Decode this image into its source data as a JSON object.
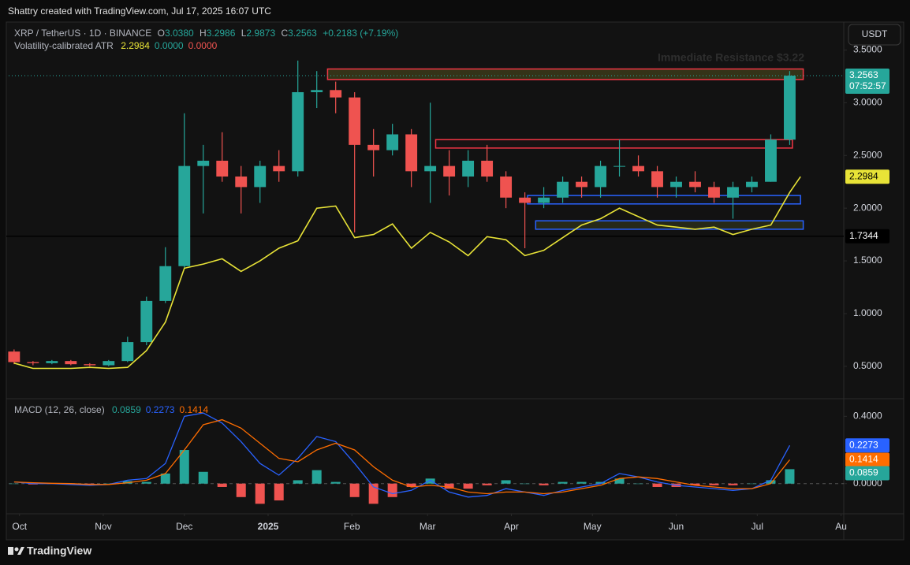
{
  "header": {
    "credit": "Shattry created with TradingView.com, Jul 17, 2025 16:07 UTC",
    "symbol": "XRP / TetherUS · 1D · BINANCE",
    "ohlc": [
      {
        "key": "O",
        "value": "3.0380"
      },
      {
        "key": "H",
        "value": "3.2986"
      },
      {
        "key": "L",
        "value": "2.9873"
      },
      {
        "key": "C",
        "value": "3.2563"
      }
    ],
    "change": "+0.2183 (+7.19%)",
    "brand": "TradingView"
  },
  "chart_data": [
    {
      "type": "candlestick",
      "x": [
        -2,
        5,
        12,
        19,
        26,
        33,
        40,
        47,
        54,
        61,
        68,
        75,
        82,
        89,
        96,
        103,
        110,
        117,
        124,
        131,
        138,
        145,
        152,
        159,
        166,
        173,
        180,
        187,
        194,
        201,
        208,
        215,
        222,
        229,
        236,
        243,
        250,
        257,
        264,
        271,
        278,
        285
      ],
      "open": [
        0.64,
        0.54,
        0.53,
        0.55,
        0.52,
        0.51,
        0.55,
        0.73,
        1.12,
        1.45,
        2.4,
        2.45,
        2.3,
        2.2,
        2.4,
        2.35,
        3.1,
        3.12,
        3.05,
        2.6,
        2.55,
        2.7,
        2.35,
        2.4,
        2.3,
        2.45,
        2.3,
        2.1,
        2.05,
        2.1,
        2.25,
        2.2,
        2.4,
        2.4,
        2.35,
        2.2,
        2.25,
        2.2,
        2.1,
        2.2,
        2.25,
        2.65
      ],
      "high": [
        0.66,
        0.55,
        0.56,
        0.56,
        0.53,
        0.56,
        0.78,
        1.16,
        1.63,
        2.9,
        2.6,
        2.72,
        2.4,
        2.45,
        2.55,
        3.4,
        3.3,
        3.2,
        3.1,
        2.75,
        2.8,
        2.75,
        3.0,
        2.55,
        2.55,
        2.6,
        2.35,
        2.15,
        2.2,
        2.3,
        2.3,
        2.45,
        2.65,
        2.5,
        2.4,
        2.3,
        2.35,
        2.25,
        2.25,
        2.3,
        2.7,
        3.3
      ],
      "low": [
        0.52,
        0.51,
        0.52,
        0.51,
        0.5,
        0.5,
        0.54,
        0.7,
        1.1,
        1.43,
        1.95,
        2.25,
        1.95,
        2.05,
        2.25,
        2.3,
        2.95,
        2.9,
        1.77,
        2.3,
        2.5,
        2.2,
        2.05,
        2.12,
        2.2,
        2.25,
        2.0,
        1.62,
        2.0,
        2.05,
        2.1,
        2.1,
        2.3,
        2.3,
        2.1,
        2.1,
        2.15,
        2.05,
        1.9,
        2.15,
        2.25,
        2.6
      ],
      "close": [
        0.54,
        0.53,
        0.55,
        0.52,
        0.51,
        0.55,
        0.73,
        1.12,
        1.45,
        2.4,
        2.45,
        2.3,
        2.2,
        2.4,
        2.35,
        3.1,
        3.12,
        3.05,
        2.6,
        2.55,
        2.7,
        2.35,
        2.4,
        2.3,
        2.45,
        2.3,
        2.1,
        2.05,
        2.1,
        2.25,
        2.2,
        2.4,
        2.4,
        2.35,
        2.2,
        2.25,
        2.2,
        2.1,
        2.2,
        2.25,
        2.65,
        3.2563
      ],
      "up_color": "#26a69a",
      "down_color": "#ef5350",
      "xlim": [
        -4,
        305
      ],
      "xticks": [
        {
          "value": 0,
          "label": "Oct"
        },
        {
          "value": 31,
          "label": "Nov"
        },
        {
          "value": 61,
          "label": "Dec"
        },
        {
          "value": 92,
          "label": "2025"
        },
        {
          "value": 123,
          "label": "Feb"
        },
        {
          "value": 151,
          "label": "Mar"
        },
        {
          "value": 182,
          "label": "Apr"
        },
        {
          "value": 212,
          "label": "May"
        },
        {
          "value": 243,
          "label": "Jun"
        },
        {
          "value": 273,
          "label": "Jul"
        },
        {
          "value": 304,
          "label": "Au"
        }
      ],
      "ylim": [
        0.2,
        3.75
      ],
      "yticks": [
        {
          "value": 3.5,
          "label": "3.5000"
        },
        {
          "value": 3,
          "label": "3.0000"
        },
        {
          "value": 2.5,
          "label": "2.5000"
        },
        {
          "value": 2,
          "label": "2.0000"
        },
        {
          "value": 1.5,
          "label": "1.5000"
        },
        {
          "value": 1,
          "label": "1.0000"
        },
        {
          "value": 0.5,
          "label": "0.5000"
        }
      ],
      "atr": {
        "name": "Volatility-calibrated ATR",
        "color": "#e8e337",
        "x": [
          -2,
          5,
          12,
          19,
          26,
          33,
          40,
          47,
          54,
          61,
          68,
          75,
          82,
          89,
          96,
          103,
          110,
          117,
          124,
          131,
          138,
          145,
          152,
          159,
          166,
          173,
          180,
          187,
          194,
          201,
          208,
          215,
          222,
          229,
          236,
          243,
          250,
          257,
          264,
          271,
          278,
          285,
          289
        ],
        "values": [
          0.53,
          0.48,
          0.48,
          0.48,
          0.49,
          0.48,
          0.49,
          0.65,
          0.92,
          1.43,
          1.47,
          1.52,
          1.4,
          1.5,
          1.62,
          1.69,
          2.0,
          2.02,
          1.72,
          1.75,
          1.85,
          1.62,
          1.77,
          1.68,
          1.55,
          1.73,
          1.7,
          1.55,
          1.6,
          1.72,
          1.84,
          1.9,
          2.0,
          1.92,
          1.84,
          1.82,
          1.8,
          1.82,
          1.75,
          1.8,
          1.84,
          2.15,
          2.2984
        ],
        "extra_values": [
          {
            "value": 0,
            "label": "0.0000",
            "color": "#26a69a"
          },
          {
            "value": 0,
            "label": "0.0000",
            "color": "#ef5350"
          }
        ]
      },
      "hline": {
        "value": 1.7344,
        "color": "#000000"
      },
      "zones": [
        {
          "x": [
            114,
            290
          ],
          "y": [
            3.22,
            3.32
          ],
          "color": "#f23645",
          "fill": "#3b3a1a"
        },
        {
          "x": [
            154,
            286
          ],
          "y": [
            2.57,
            2.65
          ],
          "color": "#f23645",
          "fill": "#1a1414"
        },
        {
          "x": [
            188,
            289
          ],
          "y": [
            2.04,
            2.12
          ],
          "color": "#2962ff",
          "fill": "#14161c"
        },
        {
          "x": [
            191,
            290
          ],
          "y": [
            1.8,
            1.88
          ],
          "color": "#2962ff",
          "fill": "#2a2e1a"
        }
      ],
      "annotation": "Immediate Resistance $3.22",
      "countdown": "07:52:57",
      "currency": "USDT"
    },
    {
      "type": "macd",
      "title": "MACD (12, 26, close)",
      "x": [
        -2,
        5,
        12,
        19,
        26,
        33,
        40,
        47,
        54,
        61,
        68,
        75,
        82,
        89,
        96,
        103,
        110,
        117,
        124,
        131,
        138,
        145,
        152,
        159,
        166,
        173,
        180,
        187,
        194,
        201,
        208,
        215,
        222,
        229,
        236,
        243,
        250,
        257,
        264,
        271,
        278,
        285
      ],
      "histogram": {
        "values": [
          0,
          -0.005,
          -0.002,
          -0.005,
          -0.005,
          0,
          0.015,
          0.01,
          0.06,
          0.2,
          0.07,
          -0.02,
          -0.08,
          -0.12,
          -0.1,
          0.02,
          0.08,
          0.01,
          -0.08,
          -0.12,
          -0.08,
          -0.02,
          0.03,
          -0.03,
          -0.03,
          -0.01,
          0.02,
          0,
          -0.01,
          0.01,
          0.01,
          0.01,
          0.03,
          0,
          -0.02,
          -0.02,
          -0.01,
          -0.01,
          -0.01,
          0,
          0.02,
          0.0859
        ],
        "positive_color": "#26a69a",
        "negative_color": "#ef5350"
      },
      "series": [
        {
          "color": "#2962ff",
          "values": [
            0.01,
            0,
            0,
            -0.005,
            -0.01,
            -0.005,
            0.02,
            0.03,
            0.12,
            0.4,
            0.42,
            0.36,
            0.25,
            0.12,
            0.05,
            0.15,
            0.28,
            0.25,
            0.12,
            -0.02,
            -0.06,
            -0.04,
            0.02,
            -0.05,
            -0.08,
            -0.07,
            -0.03,
            -0.05,
            -0.07,
            -0.04,
            -0.02,
            0,
            0.06,
            0.04,
            0.01,
            -0.01,
            -0.02,
            -0.03,
            -0.04,
            -0.03,
            0.02,
            0.2273
          ]
        },
        {
          "color": "#ff6d00",
          "values": [
            0.01,
            0.005,
            0.002,
            0,
            -0.005,
            -0.005,
            0.005,
            0.02,
            0.06,
            0.2,
            0.35,
            0.38,
            0.33,
            0.24,
            0.15,
            0.13,
            0.2,
            0.24,
            0.2,
            0.1,
            0.02,
            -0.02,
            -0.01,
            -0.02,
            -0.05,
            -0.06,
            -0.05,
            -0.05,
            -0.06,
            -0.05,
            -0.03,
            -0.01,
            0.03,
            0.04,
            0.03,
            0.01,
            -0.01,
            -0.02,
            -0.03,
            -0.03,
            0,
            0.1414
          ]
        }
      ],
      "ylim": [
        -0.17,
        0.5
      ],
      "yticks": [
        {
          "value": 0,
          "label": "0.0000"
        },
        {
          "value": 0.4,
          "label": "0.4000"
        }
      ]
    }
  ]
}
